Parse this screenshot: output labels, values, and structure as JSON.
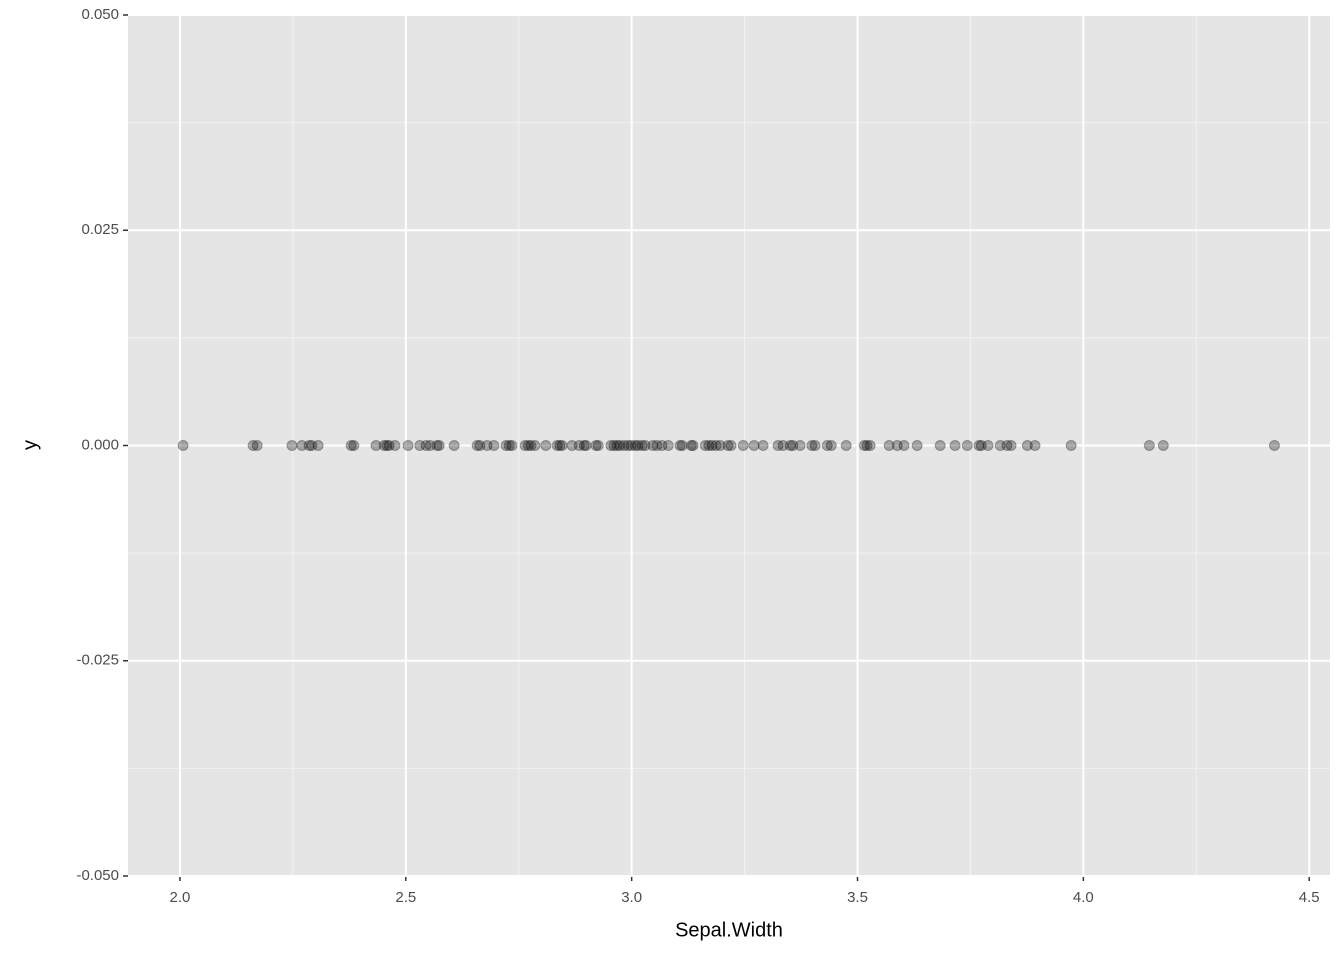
{
  "chart_data": {
    "type": "scatter",
    "x_label": "Sepal.Width",
    "y_label": "y",
    "color": "#000000",
    "opacity": 0.3,
    "grid": true,
    "xlim": [
      1.885,
      4.546
    ],
    "ylim": [
      -0.05,
      0.05
    ],
    "xticks": [
      {
        "value": 2,
        "label": "2.0"
      },
      2.5,
      {
        "value": 3,
        "label": "3.0"
      },
      3.5,
      {
        "value": 4,
        "label": "4.0"
      },
      4.5
    ],
    "yticks": [
      {
        "value": -0.05,
        "label": "-0.050"
      },
      {
        "value": -0.025,
        "label": "-0.025"
      },
      {
        "value": 0,
        "label": "0.000"
      },
      {
        "value": 0.025,
        "label": "0.025"
      },
      {
        "value": 0.05,
        "label": "0.050"
      }
    ],
    "x": [
      2.007,
      2.162,
      2.171,
      2.248,
      2.27,
      2.286,
      2.292,
      2.306,
      2.379,
      2.385,
      2.434,
      2.452,
      2.458,
      2.463,
      2.476,
      2.505,
      2.531,
      2.545,
      2.554,
      2.569,
      2.574,
      2.607,
      2.658,
      2.664,
      2.68,
      2.695,
      2.722,
      2.729,
      2.735,
      2.764,
      2.771,
      2.777,
      2.786,
      2.81,
      2.835,
      2.841,
      2.846,
      2.868,
      2.884,
      2.895,
      2.899,
      2.921,
      2.926,
      2.954,
      2.961,
      2.968,
      2.974,
      2.983,
      2.992,
      2.999,
      3.008,
      3.014,
      3.023,
      3.03,
      3.047,
      3.056,
      3.067,
      3.081,
      3.107,
      3.112,
      3.132,
      3.136,
      3.163,
      3.171,
      3.178,
      3.187,
      3.196,
      3.213,
      3.22,
      3.247,
      3.271,
      3.291,
      3.324,
      3.335,
      3.351,
      3.357,
      3.373,
      3.399,
      3.406,
      3.433,
      3.442,
      3.475,
      3.515,
      3.521,
      3.528,
      3.57,
      3.588,
      3.603,
      3.632,
      3.683,
      3.716,
      3.743,
      3.769,
      3.774,
      3.789,
      3.816,
      3.831,
      3.84,
      3.876,
      3.893,
      3.973,
      4.146,
      4.177,
      4.423
    ],
    "values": [
      0,
      0,
      0,
      0,
      0,
      0,
      0,
      0,
      0,
      0,
      0,
      0,
      0,
      0,
      0,
      0,
      0,
      0,
      0,
      0,
      0,
      0,
      0,
      0,
      0,
      0,
      0,
      0,
      0,
      0,
      0,
      0,
      0,
      0,
      0,
      0,
      0,
      0,
      0,
      0,
      0,
      0,
      0,
      0,
      0,
      0,
      0,
      0,
      0,
      0,
      0,
      0,
      0,
      0,
      0,
      0,
      0,
      0,
      0,
      0,
      0,
      0,
      0,
      0,
      0,
      0,
      0,
      0,
      0,
      0,
      0,
      0,
      0,
      0,
      0,
      0,
      0,
      0,
      0,
      0,
      0,
      0,
      0,
      0,
      0,
      0,
      0,
      0,
      0,
      0,
      0,
      0,
      0,
      0,
      0,
      0,
      0,
      0,
      0,
      0,
      0,
      0,
      0,
      0
    ]
  }
}
